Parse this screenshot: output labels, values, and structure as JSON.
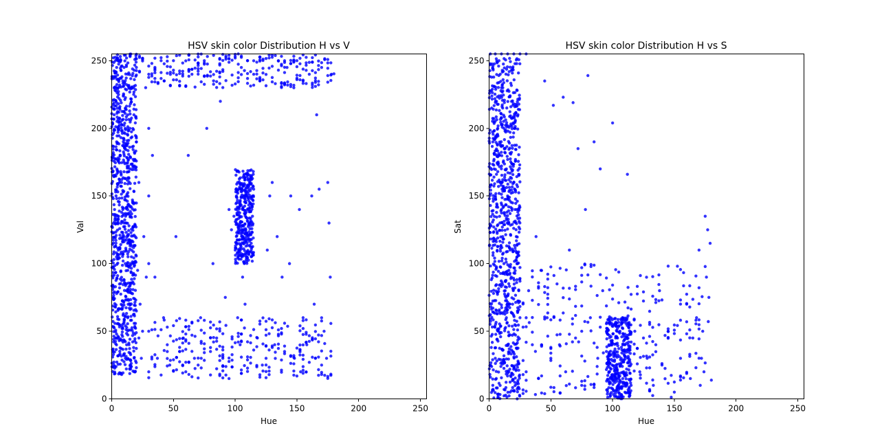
{
  "chart_data": [
    {
      "type": "scatter",
      "title": "HSV skin color Distribution H vs V",
      "xlabel": "Hue",
      "ylabel": "Val",
      "xlim": [
        0,
        255
      ],
      "ylim": [
        0,
        255
      ],
      "xticks": [
        0,
        50,
        100,
        150,
        200,
        250
      ],
      "yticks": [
        0,
        50,
        100,
        150,
        200,
        250
      ],
      "grid": false,
      "marker_color": "#0000ff",
      "series": [
        {
          "values_note_free": true,
          "clusters": [
            {
              "x": [
                0,
                20
              ],
              "y": [
                18,
                255
              ],
              "density": "very high"
            },
            {
              "x": [
                100,
                115
              ],
              "y": [
                100,
                170
              ],
              "density": "high"
            },
            {
              "x": [
                30,
                180
              ],
              "y": [
                15,
                60
              ],
              "density": "medium"
            },
            {
              "x": [
                20,
                180
              ],
              "y": [
                230,
                255
              ],
              "density": "medium"
            }
          ],
          "points": [
            [
              3,
              250
            ],
            [
              5,
              230
            ],
            [
              6,
              205
            ],
            [
              7,
              180
            ],
            [
              8,
              160
            ],
            [
              9,
              140
            ],
            [
              10,
              120
            ],
            [
              11,
              100
            ],
            [
              12,
              80
            ],
            [
              13,
              60
            ],
            [
              14,
              40
            ],
            [
              15,
              25
            ],
            [
              4,
              245
            ],
            [
              6,
              222
            ],
            [
              8,
              198
            ],
            [
              10,
              175
            ],
            [
              12,
              150
            ],
            [
              14,
              128
            ],
            [
              16,
              105
            ],
            [
              18,
              85
            ],
            [
              20,
              65
            ],
            [
              22,
              45
            ],
            [
              24,
              30
            ],
            [
              2,
              210
            ],
            [
              4,
              190
            ],
            [
              9,
              235
            ],
            [
              11,
              215
            ],
            [
              13,
              195
            ],
            [
              15,
              170
            ],
            [
              17,
              145
            ],
            [
              19,
              120
            ],
            [
              21,
              95
            ],
            [
              23,
              70
            ],
            [
              25,
              50
            ],
            [
              7,
              250
            ],
            [
              10,
              245
            ],
            [
              13,
              240
            ],
            [
              16,
              230
            ],
            [
              12,
              252
            ],
            [
              18,
              210
            ],
            [
              20,
              190
            ],
            [
              22,
              160
            ],
            [
              26,
              120
            ],
            [
              28,
              90
            ],
            [
              30,
              240
            ],
            [
              30,
              200
            ],
            [
              30,
              150
            ],
            [
              30,
              100
            ],
            [
              30,
              50
            ],
            [
              30,
              20
            ],
            [
              33,
              180
            ],
            [
              35,
              90
            ],
            [
              37,
              30
            ],
            [
              40,
              250
            ],
            [
              42,
              60
            ],
            [
              45,
              40
            ],
            [
              47,
              25
            ],
            [
              50,
              250
            ],
            [
              52,
              120
            ],
            [
              55,
              35
            ],
            [
              58,
              45
            ],
            [
              60,
              20
            ],
            [
              62,
              180
            ],
            [
              65,
              240
            ],
            [
              67,
              30
            ],
            [
              70,
              25
            ],
            [
              72,
              60
            ],
            [
              75,
              250
            ],
            [
              77,
              200
            ],
            [
              80,
              35
            ],
            [
              82,
              100
            ],
            [
              85,
              45
            ],
            [
              88,
              220
            ],
            [
              90,
              30
            ],
            [
              92,
              75
            ],
            [
              95,
              140
            ],
            [
              97,
              125
            ],
            [
              99,
              135
            ],
            [
              100,
              110
            ],
            [
              101,
              150
            ],
            [
              102,
              160
            ],
            [
              103,
              145
            ],
            [
              104,
              130
            ],
            [
              105,
              155
            ],
            [
              106,
              140
            ],
            [
              107,
              165
            ],
            [
              108,
              150
            ],
            [
              109,
              120
            ],
            [
              110,
              158
            ],
            [
              111,
              140
            ],
            [
              112,
              162
            ],
            [
              113,
              148
            ],
            [
              114,
              135
            ],
            [
              115,
              155
            ],
            [
              102,
              60
            ],
            [
              104,
              40
            ],
            [
              106,
              90
            ],
            [
              108,
              70
            ],
            [
              110,
              250
            ],
            [
              115,
              240
            ],
            [
              120,
              235
            ],
            [
              125,
              30
            ],
            [
              128,
              150
            ],
            [
              130,
              160
            ],
            [
              132,
              40
            ],
            [
              135,
              250
            ],
            [
              138,
              90
            ],
            [
              140,
              35
            ],
            [
              142,
              245
            ],
            [
              145,
              150
            ],
            [
              148,
              30
            ],
            [
              150,
              250
            ],
            [
              153,
              20
            ],
            [
              155,
              60
            ],
            [
              158,
              40
            ],
            [
              160,
              240
            ],
            [
              162,
              150
            ],
            [
              165,
              30
            ],
            [
              168,
              155
            ],
            [
              170,
              245
            ],
            [
              172,
              50
            ],
            [
              175,
              160
            ],
            [
              177,
              90
            ],
            [
              178,
              240
            ],
            [
              118,
              45
            ],
            [
              122,
              25
            ],
            [
              126,
              110
            ],
            [
              134,
              120
            ],
            [
              144,
              100
            ],
            [
              152,
              140
            ],
            [
              164,
              70
            ],
            [
              174,
              30
            ],
            [
              176,
              130
            ],
            [
              166,
              210
            ]
          ]
        }
      ]
    },
    {
      "type": "scatter",
      "title": "HSV skin color Distribution H vs S",
      "xlabel": "Hue",
      "ylabel": "Sat",
      "xlim": [
        0,
        255
      ],
      "ylim": [
        0,
        255
      ],
      "xticks": [
        0,
        50,
        100,
        150,
        200,
        250
      ],
      "yticks": [
        0,
        50,
        100,
        150,
        200,
        250
      ],
      "grid": false,
      "marker_color": "#0000ff",
      "series": [
        {
          "clusters": [
            {
              "x": [
                0,
                25
              ],
              "y": [
                0,
                252
              ],
              "density": "very high"
            },
            {
              "x": [
                95,
                115
              ],
              "y": [
                0,
                60
              ],
              "density": "high"
            },
            {
              "x": [
                25,
                180
              ],
              "y": [
                0,
                100
              ],
              "density": "medium"
            }
          ],
          "points": [
            [
              8,
              250
            ],
            [
              9,
              240
            ],
            [
              10,
              230
            ],
            [
              11,
              215
            ],
            [
              12,
              200
            ],
            [
              13,
              185
            ],
            [
              14,
              170
            ],
            [
              15,
              150
            ],
            [
              16,
              130
            ],
            [
              17,
              110
            ],
            [
              18,
              90
            ],
            [
              19,
              70
            ],
            [
              6,
              220
            ],
            [
              7,
              200
            ],
            [
              8,
              180
            ],
            [
              9,
              160
            ],
            [
              10,
              140
            ],
            [
              11,
              120
            ],
            [
              12,
              100
            ],
            [
              13,
              80
            ],
            [
              14,
              60
            ],
            [
              15,
              40
            ],
            [
              16,
              20
            ],
            [
              17,
              5
            ],
            [
              2,
              215
            ],
            [
              3,
              190
            ],
            [
              4,
              170
            ],
            [
              5,
              150
            ],
            [
              20,
              160
            ],
            [
              21,
              140
            ],
            [
              22,
              120
            ],
            [
              23,
              100
            ],
            [
              24,
              80
            ],
            [
              25,
              60
            ],
            [
              5,
              30
            ],
            [
              3,
              10
            ],
            [
              1,
              255
            ],
            [
              5,
              255
            ],
            [
              10,
              255
            ],
            [
              15,
              255
            ],
            [
              20,
              255
            ],
            [
              25,
              255
            ],
            [
              30,
              255
            ],
            [
              30,
              60
            ],
            [
              30,
              20
            ],
            [
              32,
              80
            ],
            [
              35,
              40
            ],
            [
              38,
              120
            ],
            [
              40,
              15
            ],
            [
              42,
              95
            ],
            [
              45,
              235
            ],
            [
              47,
              60
            ],
            [
              50,
              30
            ],
            [
              52,
              217
            ],
            [
              55,
              85
            ],
            [
              57,
              40
            ],
            [
              60,
              223
            ],
            [
              62,
              20
            ],
            [
              65,
              110
            ],
            [
              68,
              219
            ],
            [
              70,
              45
            ],
            [
              72,
              185
            ],
            [
              75,
              10
            ],
            [
              78,
              140
            ],
            [
              80,
              239
            ],
            [
              82,
              60
            ],
            [
              85,
              190
            ],
            [
              88,
              30
            ],
            [
              90,
              170
            ],
            [
              92,
              80
            ],
            [
              95,
              50
            ],
            [
              97,
              20
            ],
            [
              99,
              40
            ],
            [
              100,
              204
            ],
            [
              101,
              35
            ],
            [
              102,
              55
            ],
            [
              103,
              25
            ],
            [
              104,
              45
            ],
            [
              105,
              15
            ],
            [
              106,
              50
            ],
            [
              107,
              30
            ],
            [
              108,
              60
            ],
            [
              109,
              20
            ],
            [
              110,
              40
            ],
            [
              112,
              166
            ],
            [
              113,
              30
            ],
            [
              115,
              10
            ],
            [
              118,
              50
            ],
            [
              122,
              20
            ],
            [
              125,
              45
            ],
            [
              128,
              30
            ],
            [
              130,
              55
            ],
            [
              133,
              10
            ],
            [
              135,
              40
            ],
            [
              138,
              80
            ],
            [
              140,
              25
            ],
            [
              145,
              50
            ],
            [
              150,
              5
            ],
            [
              155,
              30
            ],
            [
              160,
              70
            ],
            [
              163,
              15
            ],
            [
              165,
              45
            ],
            [
              168,
              60
            ],
            [
              170,
              110
            ],
            [
              172,
              30
            ],
            [
              174,
              20
            ],
            [
              175,
              135
            ],
            [
              176,
              90
            ],
            [
              177,
              125
            ],
            [
              178,
              75
            ],
            [
              179,
              115
            ],
            [
              173,
              50
            ],
            [
              171,
              10
            ]
          ]
        }
      ]
    }
  ]
}
